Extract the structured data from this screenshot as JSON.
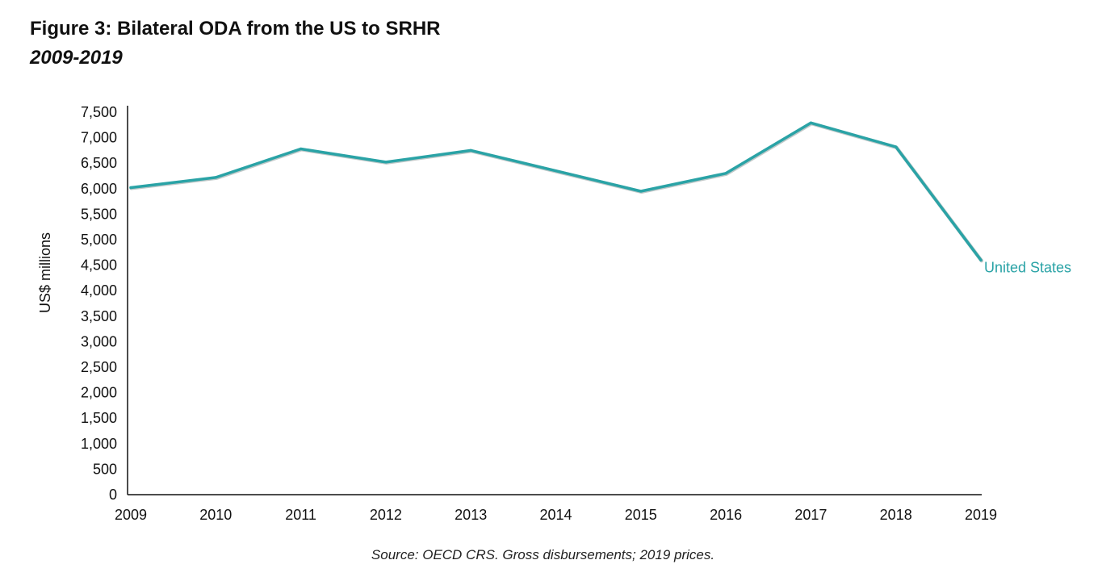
{
  "figure": {
    "title": "Figure 3: Bilateral ODA from the US to SRHR",
    "subtitle": "2009-2019",
    "source": "Source: OECD CRS. Gross disbursements; 2019 prices."
  },
  "colors": {
    "series": "#2aa3a6",
    "axis": "#111111",
    "text": "#111111"
  },
  "chart_data": {
    "type": "line",
    "title": "",
    "xlabel": "",
    "ylabel": "US$ millions",
    "x": [
      2009,
      2010,
      2011,
      2012,
      2013,
      2014,
      2015,
      2016,
      2017,
      2018,
      2019
    ],
    "x_tick_labels": [
      "2009",
      "2010",
      "2011",
      "2012",
      "2013",
      "2014",
      "2015",
      "2016",
      "2017",
      "2018",
      "2019"
    ],
    "ylim": [
      0,
      7500
    ],
    "y_ticks": [
      0,
      500,
      1000,
      1500,
      2000,
      2500,
      3000,
      3500,
      4000,
      4500,
      5000,
      5500,
      6000,
      6500,
      7000,
      7500
    ],
    "y_tick_labels": [
      "0",
      "500",
      "1,000",
      "1,500",
      "2,000",
      "2,500",
      "3,000",
      "3,500",
      "4,000",
      "4,500",
      "5,000",
      "5,500",
      "6,000",
      "6,500",
      "7,000",
      "7,500"
    ],
    "grid": false,
    "legend": "direct label at end of line",
    "series": [
      {
        "name": "United States",
        "values": [
          6020,
          6220,
          6780,
          6520,
          6750,
          6350,
          5950,
          6300,
          7290,
          6820,
          4600
        ]
      }
    ]
  }
}
